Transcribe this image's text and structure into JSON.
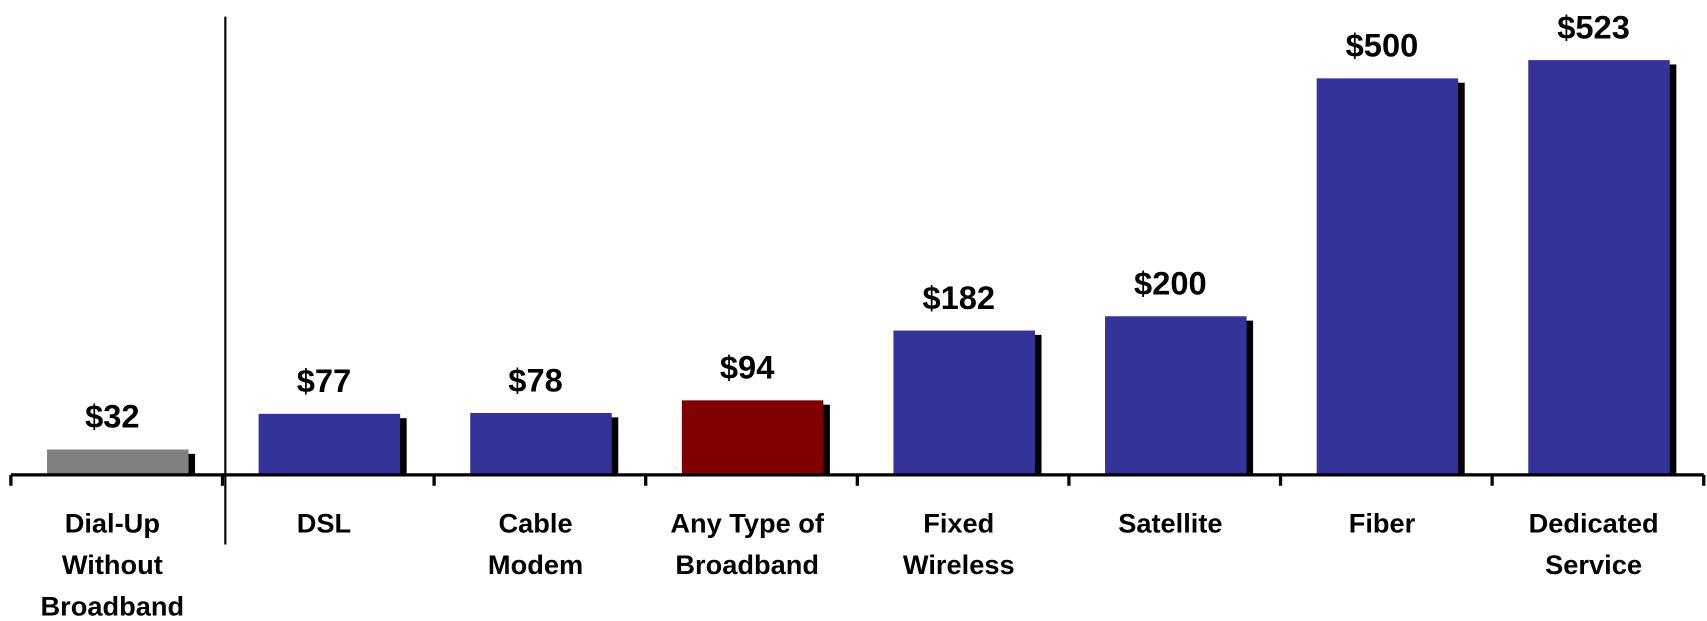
{
  "chart_data": {
    "type": "bar",
    "categories": [
      "Dial-Up\nWithout\nBroadband",
      "DSL",
      "Cable\nModem",
      "Any Type of\nBroadband",
      "Fixed\nWireless",
      "Satellite",
      "Fiber",
      "Dedicated\nService"
    ],
    "values": [
      32,
      77,
      78,
      94,
      182,
      200,
      500,
      523
    ],
    "value_labels": [
      "$32",
      "$77",
      "$78",
      "$94",
      "$182",
      "$200",
      "$500",
      "$523"
    ],
    "colors": [
      "#808080",
      "#333399",
      "#333399",
      "#800000",
      "#333399",
      "#333399",
      "#333399",
      "#333399"
    ]
  }
}
